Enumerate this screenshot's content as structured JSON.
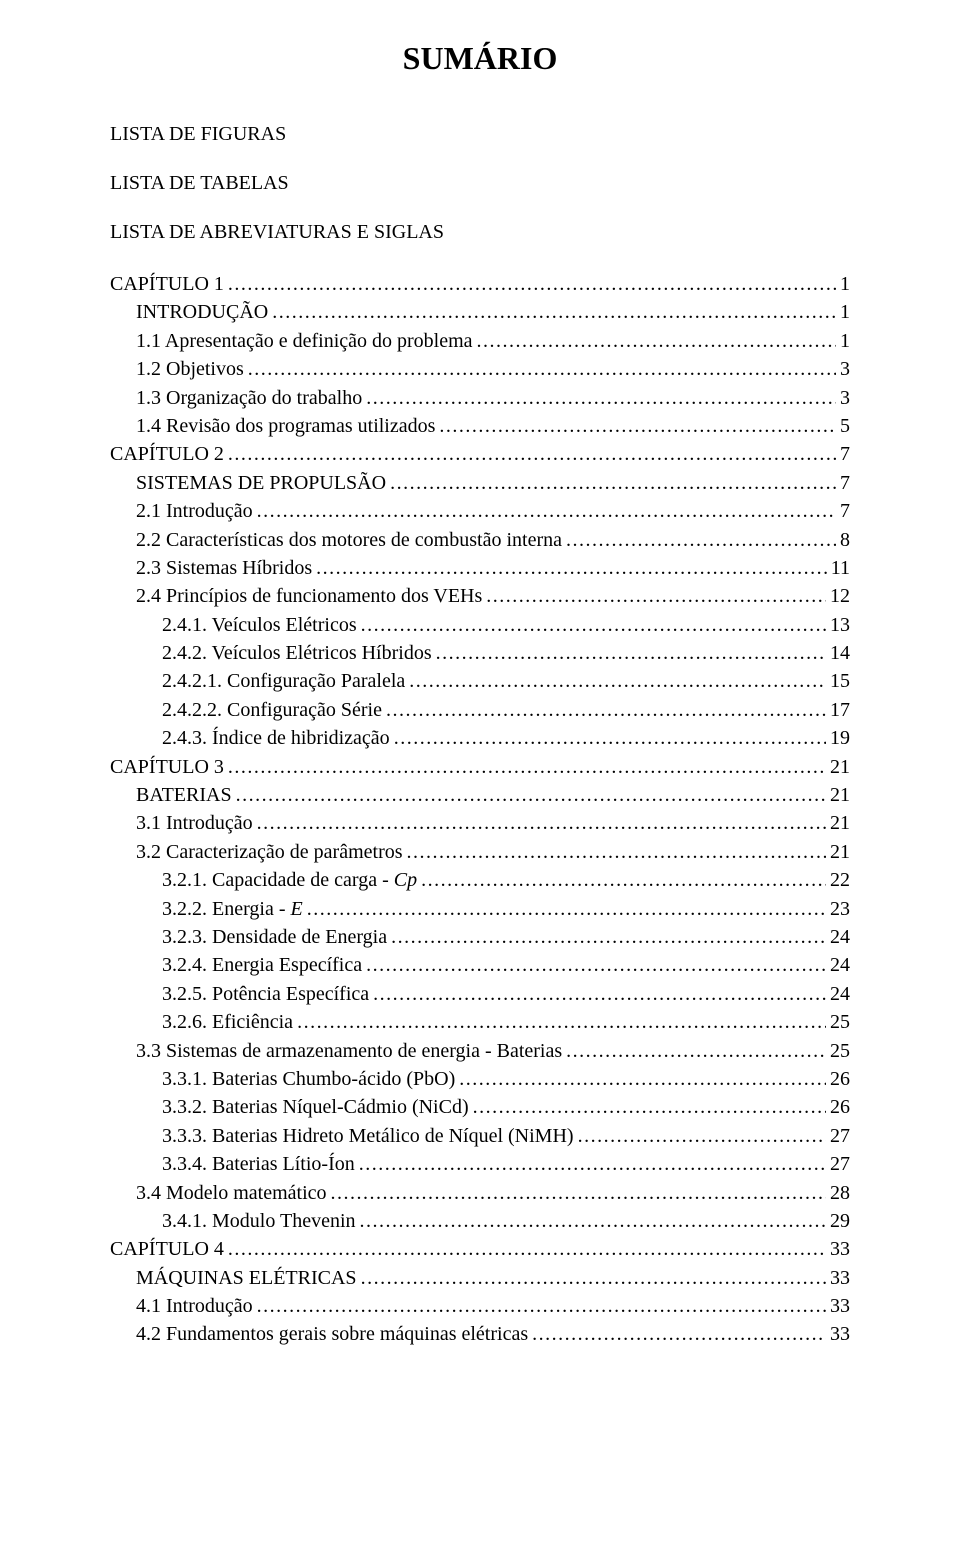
{
  "title": "SUMÁRIO",
  "headings": [
    "LISTA DE FIGURAS",
    "LISTA DE TABELAS",
    "LISTA DE ABREVIATURAS E SIGLAS"
  ],
  "toc": [
    {
      "level": 0,
      "label": "CAPÍTULO 1",
      "page": "1"
    },
    {
      "level": 1,
      "label": "INTRODUÇÃO",
      "page": "1"
    },
    {
      "level": 1,
      "label": "1.1   Apresentação e definição do problema",
      "page": "1"
    },
    {
      "level": 1,
      "label": "1.2   Objetivos",
      "page": "3"
    },
    {
      "level": 1,
      "label": "1.3   Organização do trabalho",
      "page": "3"
    },
    {
      "level": 1,
      "label": "1.4   Revisão dos programas utilizados",
      "page": "5"
    },
    {
      "level": 0,
      "label": "CAPÍTULO 2",
      "page": "7"
    },
    {
      "level": 1,
      "label": "SISTEMAS DE PROPULSÃO",
      "page": "7"
    },
    {
      "level": 1,
      "label": "2.1   Introdução",
      "page": "7"
    },
    {
      "level": 1,
      "label": "2.2   Características dos motores de combustão interna",
      "page": "8"
    },
    {
      "level": 1,
      "label": "2.3   Sistemas Híbridos",
      "page": "11"
    },
    {
      "level": 1,
      "label": "2.4   Princípios de funcionamento dos VEHs",
      "page": "12"
    },
    {
      "level": 2,
      "label": "2.4.1.    Veículos Elétricos",
      "page": "13"
    },
    {
      "level": 2,
      "label": "2.4.2.    Veículos Elétricos Híbridos",
      "page": "14"
    },
    {
      "level": 3,
      "label": "2.4.2.1.    Configuração Paralela",
      "page": "15"
    },
    {
      "level": 3,
      "label": "2.4.2.2.    Configuração Série",
      "page": "17"
    },
    {
      "level": 2,
      "label": "2.4.3.    Índice de hibridização",
      "page": "19"
    },
    {
      "level": 0,
      "label": "CAPÍTULO 3",
      "page": "21"
    },
    {
      "level": 1,
      "label": "BATERIAS",
      "page": "21"
    },
    {
      "level": 1,
      "label": "3.1   Introdução",
      "page": "21"
    },
    {
      "level": 1,
      "label": "3.2   Caracterização de parâmetros",
      "page": "21"
    },
    {
      "level": 2,
      "label": "3.2.1.    Capacidade de carga - ",
      "italic_suffix": "Cp",
      "page": "22"
    },
    {
      "level": 2,
      "label": "3.2.2.    Energia - ",
      "italic_suffix": "E",
      "page": "23"
    },
    {
      "level": 2,
      "label": "3.2.3.    Densidade de Energia",
      "page": "24"
    },
    {
      "level": 2,
      "label": "3.2.4.    Energia Específica",
      "page": "24"
    },
    {
      "level": 2,
      "label": "3.2.5.    Potência Específica",
      "page": "24"
    },
    {
      "level": 2,
      "label": "3.2.6.    Eficiência",
      "page": "25"
    },
    {
      "level": 1,
      "label": "3.3   Sistemas de armazenamento de energia - Baterias",
      "page": "25"
    },
    {
      "level": 2,
      "label": "3.3.1.    Baterias Chumbo-ácido (PbO)",
      "page": "26"
    },
    {
      "level": 2,
      "label": "3.3.2.    Baterias Níquel-Cádmio (NiCd)",
      "page": "26"
    },
    {
      "level": 2,
      "label": "3.3.3.    Baterias Hidreto Metálico de Níquel (NiMH)",
      "page": "27"
    },
    {
      "level": 2,
      "label": "3.3.4.    Baterias Lítio-Íon",
      "page": "27"
    },
    {
      "level": 1,
      "label": "3.4   Modelo matemático",
      "page": "28"
    },
    {
      "level": 2,
      "label": "3.4.1.    Modulo Thevenin",
      "page": "29"
    },
    {
      "level": 0,
      "label": "CAPÍTULO 4",
      "page": "33"
    },
    {
      "level": 1,
      "label": "MÁQUINAS ELÉTRICAS",
      "page": "33"
    },
    {
      "level": 1,
      "label": "4.1   Introdução",
      "page": "33"
    },
    {
      "level": 1,
      "label": "4.2   Fundamentos gerais sobre máquinas elétricas",
      "page": "33"
    }
  ]
}
